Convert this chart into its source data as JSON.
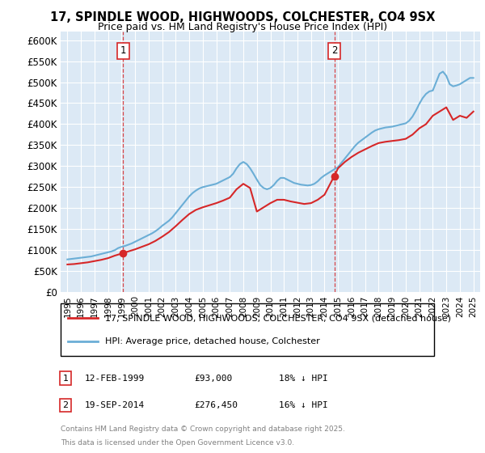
{
  "title": "17, SPINDLE WOOD, HIGHWOODS, COLCHESTER, CO4 9SX",
  "subtitle": "Price paid vs. HM Land Registry's House Price Index (HPI)",
  "legend_entry1": "17, SPINDLE WOOD, HIGHWOODS, COLCHESTER, CO4 9SX (detached house)",
  "legend_entry2": "HPI: Average price, detached house, Colchester",
  "footnote1": "Contains HM Land Registry data © Crown copyright and database right 2025.",
  "footnote2": "This data is licensed under the Open Government Licence v3.0.",
  "transaction1_label": "1",
  "transaction1_date": "12-FEB-1999",
  "transaction1_price": "£93,000",
  "transaction1_hpi": "18% ↓ HPI",
  "transaction1_year": 1999.12,
  "transaction1_value": 93000,
  "transaction2_label": "2",
  "transaction2_date": "19-SEP-2014",
  "transaction2_price": "£276,450",
  "transaction2_hpi": "16% ↓ HPI",
  "transaction2_year": 2014.72,
  "transaction2_value": 276450,
  "hpi_color": "#6baed6",
  "price_color": "#d62728",
  "dashed_color": "#d62728",
  "background_color": "#dce9f5",
  "ylim_min": 0,
  "ylim_max": 620000,
  "yticks": [
    0,
    50000,
    100000,
    150000,
    200000,
    250000,
    300000,
    350000,
    400000,
    450000,
    500000,
    550000,
    600000
  ],
  "xlim_min": 1994.5,
  "xlim_max": 2025.5,
  "hpi_years": [
    1995.0,
    1995.25,
    1995.5,
    1995.75,
    1996.0,
    1996.25,
    1996.5,
    1996.75,
    1997.0,
    1997.25,
    1997.5,
    1997.75,
    1998.0,
    1998.25,
    1998.5,
    1998.75,
    1999.0,
    1999.25,
    1999.5,
    1999.75,
    2000.0,
    2000.25,
    2000.5,
    2000.75,
    2001.0,
    2001.25,
    2001.5,
    2001.75,
    2002.0,
    2002.25,
    2002.5,
    2002.75,
    2003.0,
    2003.25,
    2003.5,
    2003.75,
    2004.0,
    2004.25,
    2004.5,
    2004.75,
    2005.0,
    2005.25,
    2005.5,
    2005.75,
    2006.0,
    2006.25,
    2006.5,
    2006.75,
    2007.0,
    2007.25,
    2007.5,
    2007.75,
    2008.0,
    2008.25,
    2008.5,
    2008.75,
    2009.0,
    2009.25,
    2009.5,
    2009.75,
    2010.0,
    2010.25,
    2010.5,
    2010.75,
    2011.0,
    2011.25,
    2011.5,
    2011.75,
    2012.0,
    2012.25,
    2012.5,
    2012.75,
    2013.0,
    2013.25,
    2013.5,
    2013.75,
    2014.0,
    2014.25,
    2014.5,
    2014.75,
    2015.0,
    2015.25,
    2015.5,
    2015.75,
    2016.0,
    2016.25,
    2016.5,
    2016.75,
    2017.0,
    2017.25,
    2017.5,
    2017.75,
    2018.0,
    2018.25,
    2018.5,
    2018.75,
    2019.0,
    2019.25,
    2019.5,
    2019.75,
    2020.0,
    2020.25,
    2020.5,
    2020.75,
    2021.0,
    2021.25,
    2021.5,
    2021.75,
    2022.0,
    2022.25,
    2022.5,
    2022.75,
    2023.0,
    2023.25,
    2023.5,
    2023.75,
    2024.0,
    2024.25,
    2024.5,
    2024.75,
    2025.0
  ],
  "hpi_values": [
    78000,
    79000,
    80000,
    81000,
    82000,
    83000,
    84000,
    85000,
    87000,
    89000,
    91000,
    93000,
    95000,
    97000,
    100000,
    105000,
    108000,
    110000,
    113000,
    116000,
    120000,
    124000,
    128000,
    132000,
    136000,
    140000,
    145000,
    151000,
    158000,
    164000,
    170000,
    178000,
    188000,
    198000,
    208000,
    218000,
    228000,
    236000,
    242000,
    247000,
    250000,
    252000,
    254000,
    256000,
    258000,
    262000,
    266000,
    270000,
    274000,
    282000,
    295000,
    305000,
    310000,
    305000,
    295000,
    282000,
    268000,
    255000,
    248000,
    245000,
    248000,
    255000,
    265000,
    272000,
    272000,
    268000,
    264000,
    260000,
    258000,
    256000,
    255000,
    254000,
    255000,
    258000,
    264000,
    272000,
    278000,
    283000,
    288000,
    293000,
    298000,
    308000,
    318000,
    328000,
    338000,
    348000,
    356000,
    362000,
    368000,
    374000,
    380000,
    385000,
    388000,
    390000,
    392000,
    393000,
    394000,
    396000,
    398000,
    400000,
    402000,
    408000,
    418000,
    432000,
    448000,
    462000,
    472000,
    478000,
    480000,
    500000,
    520000,
    525000,
    515000,
    495000,
    490000,
    492000,
    495000,
    500000,
    505000,
    510000,
    510000
  ],
  "price_years": [
    1995.0,
    1995.5,
    1996.0,
    1996.5,
    1997.0,
    1997.5,
    1998.0,
    1998.5,
    1999.12,
    1999.5,
    2000.0,
    2000.5,
    2001.0,
    2001.5,
    2002.0,
    2002.5,
    2003.0,
    2003.5,
    2004.0,
    2004.5,
    2005.0,
    2005.5,
    2006.0,
    2006.5,
    2007.0,
    2007.5,
    2008.0,
    2008.5,
    2009.0,
    2009.5,
    2010.0,
    2010.5,
    2011.0,
    2011.5,
    2012.0,
    2012.5,
    2013.0,
    2013.5,
    2014.0,
    2014.72,
    2015.0,
    2015.5,
    2016.0,
    2016.5,
    2017.0,
    2017.5,
    2018.0,
    2018.5,
    2019.0,
    2019.5,
    2020.0,
    2020.5,
    2021.0,
    2021.5,
    2022.0,
    2022.5,
    2023.0,
    2023.5,
    2024.0,
    2024.5,
    2025.0
  ],
  "price_values": [
    66000,
    67000,
    69000,
    71000,
    74000,
    77000,
    81000,
    87000,
    93000,
    97000,
    102000,
    108000,
    114000,
    122000,
    132000,
    143000,
    157000,
    172000,
    186000,
    196000,
    202000,
    207000,
    212000,
    218000,
    225000,
    245000,
    258000,
    248000,
    192000,
    202000,
    212000,
    220000,
    220000,
    216000,
    213000,
    210000,
    212000,
    220000,
    232000,
    276450,
    295000,
    310000,
    322000,
    332000,
    340000,
    348000,
    355000,
    358000,
    360000,
    362000,
    365000,
    375000,
    390000,
    400000,
    420000,
    430000,
    440000,
    410000,
    420000,
    415000,
    430000
  ]
}
